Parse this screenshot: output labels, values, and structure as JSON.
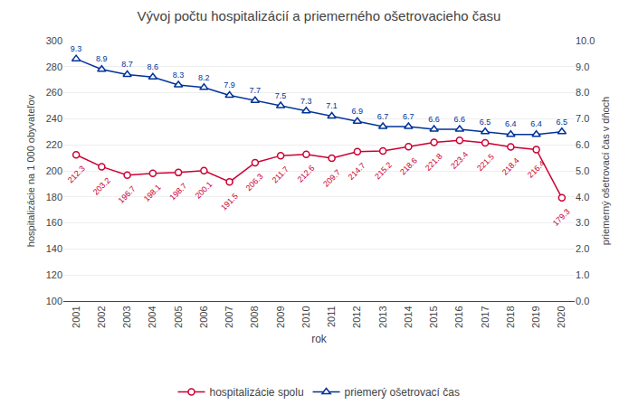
{
  "chart_data": {
    "type": "line",
    "title": "Vývoj počtu hospitalizácií a priemerného ošetrovacieho času",
    "xlabel": "rok",
    "ylabel": "hospitalizácie na 1 000 obyvateľov",
    "y2label": "priemerný ošetrovací čas v dňoch",
    "x": [
      2001,
      2002,
      2003,
      2004,
      2005,
      2006,
      2007,
      2008,
      2009,
      2010,
      2011,
      2012,
      2013,
      2014,
      2015,
      2016,
      2017,
      2018,
      2019,
      2020
    ],
    "series": [
      {
        "name": "hospitalizácie spolu",
        "color": "#CC0033",
        "marker": "circle",
        "values": [
          212.3,
          203.2,
          196.7,
          198.1,
          198.7,
          200.1,
          191.5,
          206.3,
          211.7,
          212.6,
          209.7,
          214.7,
          215.2,
          218.6,
          221.8,
          223.4,
          221.5,
          218.4,
          216.4,
          179.3
        ]
      },
      {
        "name": "priemerý ošetrovací čas",
        "color": "#003399",
        "marker": "triangle-up",
        "axis": "y2",
        "values": [
          9.3,
          8.9,
          8.7,
          8.6,
          8.3,
          8.2,
          7.9,
          7.7,
          7.5,
          7.3,
          7.1,
          6.9,
          6.7,
          6.7,
          6.6,
          6.6,
          6.5,
          6.4,
          6.4,
          6.5
        ]
      }
    ],
    "xlim": [
      2000.5,
      2020.5
    ],
    "xticks": [
      2001,
      2002,
      2003,
      2004,
      2005,
      2006,
      2007,
      2008,
      2009,
      2010,
      2011,
      2012,
      2013,
      2014,
      2015,
      2016,
      2017,
      2018,
      2019,
      2020
    ],
    "ylim": [
      100,
      300
    ],
    "yticks": [
      100,
      120,
      140,
      160,
      180,
      200,
      220,
      240,
      260,
      280,
      300
    ],
    "y2lim": [
      0,
      10
    ],
    "y2ticks": [
      {
        "value": 0,
        "label": "0.0"
      },
      {
        "value": 1,
        "label": "1.0"
      },
      {
        "value": 2,
        "label": "2.0"
      },
      {
        "value": 3,
        "label": "3.0"
      },
      {
        "value": 4,
        "label": "4.0"
      },
      {
        "value": 5,
        "label": "5.0"
      },
      {
        "value": 6,
        "label": "6.0"
      },
      {
        "value": 7,
        "label": "7.0"
      },
      {
        "value": 8,
        "label": "8.0"
      },
      {
        "value": 9,
        "label": "9.0"
      },
      {
        "value": 10,
        "label": "10.0"
      }
    ],
    "grid": true,
    "legend": "bottom",
    "data_labels": true
  }
}
